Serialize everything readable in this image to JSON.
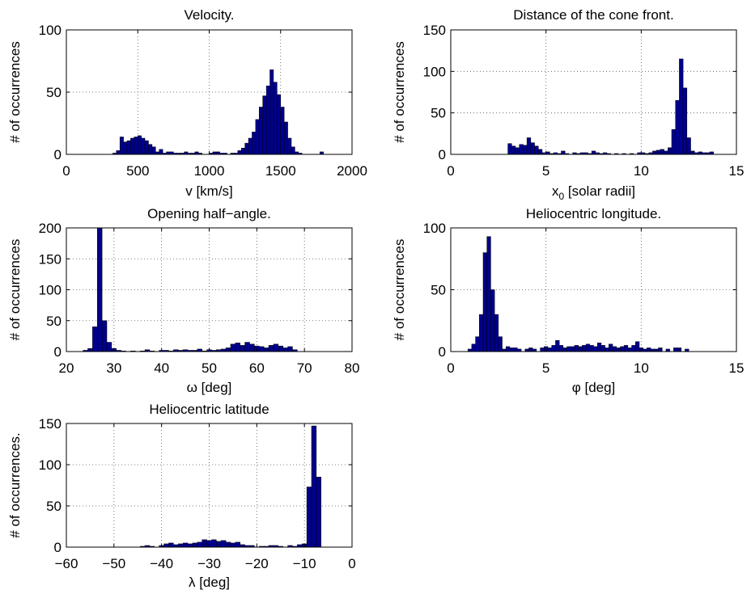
{
  "chart_data": [
    {
      "type": "bar",
      "title": "Velocity.",
      "xlabel": "v [km/s]",
      "ylabel": "# of occurrences",
      "xlim": [
        0,
        2000
      ],
      "ylim": [
        0,
        100
      ],
      "xticks": [
        "0",
        "500",
        "1000",
        "1500",
        "2000"
      ],
      "yticks": [
        "0",
        "50",
        "100"
      ],
      "bar_color": "#00008b",
      "grid": true,
      "bins": [
        [
          325,
          350,
          1
        ],
        [
          350,
          375,
          3
        ],
        [
          375,
          400,
          14
        ],
        [
          400,
          425,
          10
        ],
        [
          425,
          450,
          11
        ],
        [
          450,
          475,
          13
        ],
        [
          475,
          500,
          14
        ],
        [
          500,
          525,
          15
        ],
        [
          525,
          550,
          13
        ],
        [
          550,
          575,
          11
        ],
        [
          575,
          600,
          8
        ],
        [
          600,
          625,
          6
        ],
        [
          625,
          650,
          2
        ],
        [
          650,
          675,
          4
        ],
        [
          675,
          700,
          1
        ],
        [
          700,
          725,
          2
        ],
        [
          725,
          750,
          2
        ],
        [
          750,
          775,
          1
        ],
        [
          775,
          800,
          1
        ],
        [
          800,
          825,
          1
        ],
        [
          825,
          850,
          2
        ],
        [
          850,
          875,
          1
        ],
        [
          875,
          900,
          1
        ],
        [
          900,
          925,
          2
        ],
        [
          925,
          950,
          1
        ],
        [
          1000,
          1025,
          1
        ],
        [
          1025,
          1050,
          2
        ],
        [
          1050,
          1075,
          2
        ],
        [
          1075,
          1100,
          1
        ],
        [
          1100,
          1125,
          1
        ],
        [
          1150,
          1175,
          1
        ],
        [
          1175,
          1200,
          1
        ],
        [
          1200,
          1225,
          3
        ],
        [
          1225,
          1250,
          5
        ],
        [
          1250,
          1275,
          9
        ],
        [
          1275,
          1300,
          13
        ],
        [
          1300,
          1325,
          18
        ],
        [
          1325,
          1350,
          28
        ],
        [
          1350,
          1375,
          38
        ],
        [
          1375,
          1400,
          47
        ],
        [
          1400,
          1425,
          55
        ],
        [
          1425,
          1450,
          68
        ],
        [
          1450,
          1475,
          58
        ],
        [
          1475,
          1500,
          48
        ],
        [
          1500,
          1525,
          38
        ],
        [
          1525,
          1550,
          26
        ],
        [
          1550,
          1575,
          13
        ],
        [
          1575,
          1600,
          6
        ],
        [
          1600,
          1625,
          2
        ],
        [
          1625,
          1650,
          1
        ],
        [
          1775,
          1800,
          2
        ]
      ]
    },
    {
      "type": "bar",
      "title": "Distance of the cone front.",
      "xlabel": "x",
      "xlabel_sub": "0",
      "xlabel_rest": " [solar radii]",
      "ylabel": "# of occurrences",
      "xlim": [
        0,
        15
      ],
      "ylim": [
        0,
        150
      ],
      "xticks": [
        "0",
        "5",
        "10",
        "15"
      ],
      "yticks": [
        "0",
        "50",
        "100",
        "150"
      ],
      "bar_color": "#00008b",
      "grid": true,
      "bins": [
        [
          3.0,
          3.2,
          13
        ],
        [
          3.2,
          3.4,
          10
        ],
        [
          3.4,
          3.6,
          8
        ],
        [
          3.6,
          3.8,
          12
        ],
        [
          3.8,
          4.0,
          11
        ],
        [
          4.0,
          4.2,
          20
        ],
        [
          4.2,
          4.4,
          14
        ],
        [
          4.4,
          4.6,
          10
        ],
        [
          4.6,
          4.8,
          6
        ],
        [
          4.8,
          5.0,
          2
        ],
        [
          5.0,
          5.2,
          3
        ],
        [
          5.2,
          5.4,
          1
        ],
        [
          5.4,
          5.6,
          2
        ],
        [
          5.6,
          5.8,
          1
        ],
        [
          5.8,
          6.0,
          4
        ],
        [
          6.0,
          6.2,
          1
        ],
        [
          6.4,
          6.6,
          2
        ],
        [
          6.6,
          6.8,
          1
        ],
        [
          6.8,
          7.0,
          2
        ],
        [
          7.0,
          7.2,
          2
        ],
        [
          7.2,
          7.4,
          1
        ],
        [
          7.4,
          7.6,
          4
        ],
        [
          7.6,
          7.8,
          2
        ],
        [
          7.8,
          8.0,
          1
        ],
        [
          8.0,
          8.2,
          2
        ],
        [
          8.2,
          8.4,
          1
        ],
        [
          8.6,
          8.8,
          1
        ],
        [
          9.0,
          9.2,
          1
        ],
        [
          9.4,
          9.6,
          1
        ],
        [
          9.8,
          10.0,
          2
        ],
        [
          10.0,
          10.2,
          2
        ],
        [
          10.2,
          10.4,
          1
        ],
        [
          10.4,
          10.6,
          2
        ],
        [
          10.6,
          10.8,
          4
        ],
        [
          10.8,
          11.0,
          5
        ],
        [
          11.0,
          11.2,
          6
        ],
        [
          11.2,
          11.4,
          4
        ],
        [
          11.4,
          11.6,
          8
        ],
        [
          11.6,
          11.8,
          30
        ],
        [
          11.8,
          12.0,
          65
        ],
        [
          12.0,
          12.2,
          115
        ],
        [
          12.2,
          12.4,
          80
        ],
        [
          12.4,
          12.6,
          20
        ],
        [
          12.6,
          12.8,
          4
        ],
        [
          12.8,
          13.0,
          2
        ],
        [
          13.0,
          13.2,
          3
        ],
        [
          13.2,
          13.4,
          2
        ],
        [
          13.4,
          13.6,
          2
        ],
        [
          13.6,
          13.8,
          3
        ]
      ]
    },
    {
      "type": "bar",
      "title": "Opening half−angle.",
      "xlabel": "ω [deg]",
      "ylabel": "# of occurrences",
      "xlim": [
        20,
        80
      ],
      "ylim": [
        0,
        200
      ],
      "xticks": [
        "20",
        "30",
        "40",
        "50",
        "60",
        "70",
        "80"
      ],
      "yticks": [
        "0",
        "50",
        "100",
        "150",
        "200"
      ],
      "bar_color": "#00008b",
      "grid": true,
      "bins": [
        [
          23.5,
          24.5,
          2
        ],
        [
          24.5,
          25.5,
          5
        ],
        [
          25.5,
          26.5,
          40
        ],
        [
          26.5,
          27.5,
          200
        ],
        [
          27.5,
          28.5,
          50
        ],
        [
          28.5,
          29.5,
          15
        ],
        [
          29.5,
          30.5,
          5
        ],
        [
          30.5,
          31.5,
          2
        ],
        [
          31.5,
          32.5,
          1
        ],
        [
          33.5,
          34.5,
          1
        ],
        [
          35.5,
          36.5,
          1
        ],
        [
          36.5,
          37.5,
          3
        ],
        [
          37.5,
          38.5,
          1
        ],
        [
          39.5,
          40.5,
          2
        ],
        [
          40.5,
          41.5,
          2
        ],
        [
          41.5,
          42.5,
          1
        ],
        [
          42.5,
          43.5,
          3
        ],
        [
          43.5,
          44.5,
          2
        ],
        [
          44.5,
          45.5,
          3
        ],
        [
          45.5,
          46.5,
          2
        ],
        [
          46.5,
          47.5,
          2
        ],
        [
          47.5,
          48.5,
          4
        ],
        [
          48.5,
          49.5,
          1
        ],
        [
          49.5,
          50.5,
          3
        ],
        [
          50.5,
          51.5,
          2
        ],
        [
          51.5,
          52.5,
          3
        ],
        [
          52.5,
          53.5,
          4
        ],
        [
          53.5,
          54.5,
          6
        ],
        [
          54.5,
          55.5,
          12
        ],
        [
          55.5,
          56.5,
          14
        ],
        [
          56.5,
          57.5,
          10
        ],
        [
          57.5,
          58.5,
          15
        ],
        [
          58.5,
          59.5,
          12
        ],
        [
          59.5,
          60.5,
          9
        ],
        [
          60.5,
          61.5,
          8
        ],
        [
          61.5,
          62.5,
          6
        ],
        [
          62.5,
          63.5,
          10
        ],
        [
          63.5,
          64.5,
          12
        ],
        [
          64.5,
          65.5,
          9
        ],
        [
          65.5,
          66.5,
          6
        ],
        [
          66.5,
          67.5,
          8
        ],
        [
          67.5,
          68.5,
          3
        ]
      ]
    },
    {
      "type": "bar",
      "title": "Heliocentric longitude.",
      "xlabel": "φ [deg]",
      "ylabel": "# of occurrences",
      "xlim": [
        0,
        15
      ],
      "ylim": [
        0,
        100
      ],
      "xticks": [
        "0",
        "5",
        "10",
        "15"
      ],
      "yticks": [
        "0",
        "50",
        "100"
      ],
      "bar_color": "#00008b",
      "grid": true,
      "bins": [
        [
          0.9,
          1.1,
          2
        ],
        [
          1.1,
          1.3,
          6
        ],
        [
          1.3,
          1.5,
          12
        ],
        [
          1.5,
          1.7,
          30
        ],
        [
          1.7,
          1.9,
          80
        ],
        [
          1.9,
          2.1,
          93
        ],
        [
          2.1,
          2.3,
          50
        ],
        [
          2.3,
          2.5,
          30
        ],
        [
          2.5,
          2.7,
          12
        ],
        [
          2.7,
          2.9,
          2
        ],
        [
          2.9,
          3.1,
          4
        ],
        [
          3.1,
          3.3,
          3
        ],
        [
          3.3,
          3.5,
          3
        ],
        [
          3.5,
          3.7,
          2
        ],
        [
          3.9,
          4.1,
          2
        ],
        [
          4.1,
          4.3,
          3
        ],
        [
          4.3,
          4.5,
          2
        ],
        [
          4.7,
          4.9,
          3
        ],
        [
          4.9,
          5.1,
          4
        ],
        [
          5.1,
          5.3,
          3
        ],
        [
          5.3,
          5.5,
          5
        ],
        [
          5.5,
          5.7,
          9
        ],
        [
          5.7,
          5.9,
          5
        ],
        [
          5.9,
          6.1,
          3
        ],
        [
          6.1,
          6.3,
          4
        ],
        [
          6.3,
          6.5,
          4
        ],
        [
          6.5,
          6.7,
          5
        ],
        [
          6.7,
          6.9,
          4
        ],
        [
          6.9,
          7.1,
          5
        ],
        [
          7.1,
          7.3,
          6
        ],
        [
          7.3,
          7.5,
          5
        ],
        [
          7.5,
          7.7,
          4
        ],
        [
          7.7,
          7.9,
          7
        ],
        [
          7.9,
          8.1,
          5
        ],
        [
          8.1,
          8.3,
          3
        ],
        [
          8.3,
          8.5,
          6
        ],
        [
          8.5,
          8.7,
          4
        ],
        [
          8.7,
          8.9,
          3
        ],
        [
          8.9,
          9.1,
          4
        ],
        [
          9.1,
          9.3,
          5
        ],
        [
          9.3,
          9.5,
          3
        ],
        [
          9.5,
          9.7,
          5
        ],
        [
          9.7,
          9.9,
          8
        ],
        [
          9.9,
          10.1,
          3
        ],
        [
          10.1,
          10.3,
          2
        ],
        [
          10.3,
          10.5,
          3
        ],
        [
          10.5,
          10.7,
          2
        ],
        [
          10.7,
          10.9,
          2
        ],
        [
          10.9,
          11.1,
          3
        ],
        [
          11.3,
          11.5,
          2
        ],
        [
          11.7,
          11.9,
          3
        ],
        [
          11.9,
          12.1,
          3
        ],
        [
          12.3,
          12.5,
          2
        ]
      ]
    },
    {
      "type": "bar",
      "title": "Heliocentric latitude",
      "xlabel": "λ [deg]",
      "ylabel": "# of occurrences.",
      "xlim": [
        -60,
        0
      ],
      "ylim": [
        0,
        150
      ],
      "xticks": [
        "−60",
        "−50",
        "−40",
        "−30",
        "−20",
        "−10",
        "0"
      ],
      "yticks": [
        "0",
        "50",
        "100",
        "150"
      ],
      "bar_color": "#00008b",
      "grid": true,
      "bins": [
        [
          -44.5,
          -43.5,
          1
        ],
        [
          -43.5,
          -42.5,
          2
        ],
        [
          -42.5,
          -41.5,
          1
        ],
        [
          -40.5,
          -39.5,
          2
        ],
        [
          -39.5,
          -38.5,
          4
        ],
        [
          -38.5,
          -37.5,
          5
        ],
        [
          -37.5,
          -36.5,
          3
        ],
        [
          -36.5,
          -35.5,
          4
        ],
        [
          -35.5,
          -34.5,
          5
        ],
        [
          -34.5,
          -33.5,
          4
        ],
        [
          -33.5,
          -32.5,
          5
        ],
        [
          -32.5,
          -31.5,
          6
        ],
        [
          -31.5,
          -30.5,
          9
        ],
        [
          -30.5,
          -29.5,
          8
        ],
        [
          -29.5,
          -28.5,
          9
        ],
        [
          -28.5,
          -27.5,
          7
        ],
        [
          -27.5,
          -26.5,
          8
        ],
        [
          -26.5,
          -25.5,
          6
        ],
        [
          -25.5,
          -24.5,
          5
        ],
        [
          -24.5,
          -23.5,
          6
        ],
        [
          -23.5,
          -22.5,
          3
        ],
        [
          -22.5,
          -21.5,
          2
        ],
        [
          -21.5,
          -20.5,
          2
        ],
        [
          -19.5,
          -18.5,
          1
        ],
        [
          -18.5,
          -17.5,
          1
        ],
        [
          -17.5,
          -16.5,
          2
        ],
        [
          -16.5,
          -15.5,
          2
        ],
        [
          -15.5,
          -14.5,
          1
        ],
        [
          -13.5,
          -12.5,
          2
        ],
        [
          -12.5,
          -11.5,
          1
        ],
        [
          -11.5,
          -10.5,
          3
        ],
        [
          -10.5,
          -9.5,
          4
        ],
        [
          -9.5,
          -8.5,
          73
        ],
        [
          -8.5,
          -7.5,
          147
        ],
        [
          -7.5,
          -6.5,
          85
        ]
      ]
    }
  ]
}
